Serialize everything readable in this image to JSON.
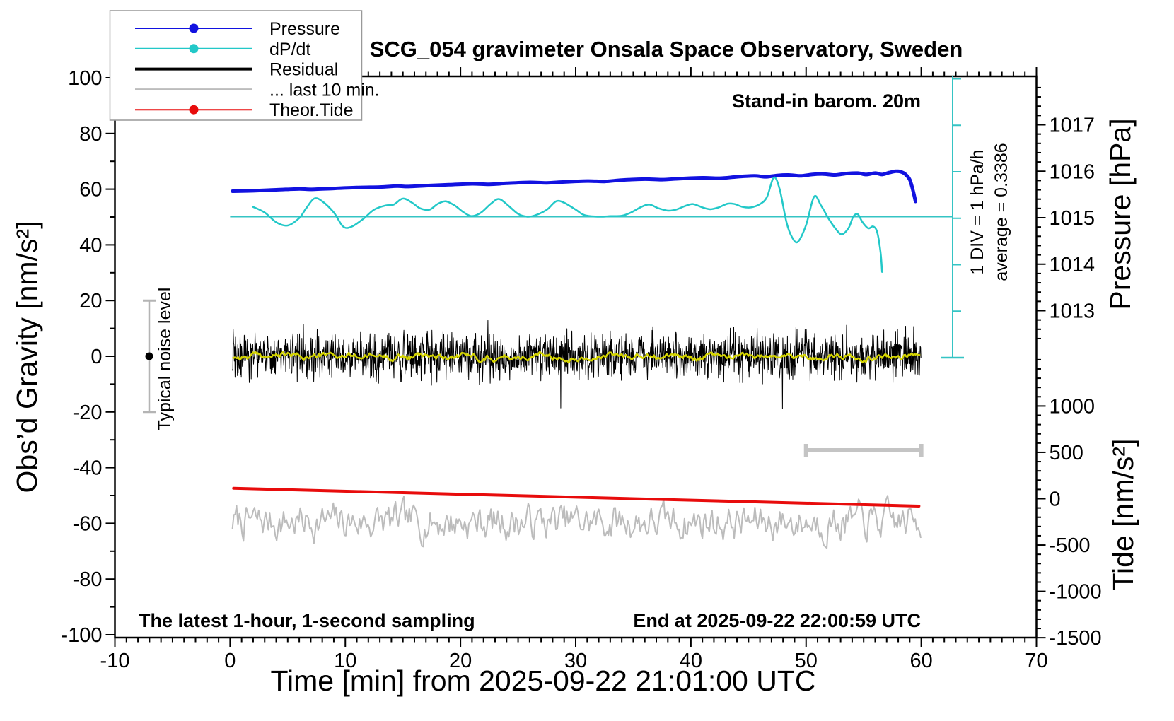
{
  "title": "SCG_054 gravimeter Onsala Space Observatory, Sweden",
  "annotations": {
    "barometer_note": "Stand-in barom. 20m",
    "div_note": "1 DIV = 1 hPa/h",
    "average_note": "average = 0.3386",
    "noise_note": "Typical noise level",
    "footer_left": "The latest 1-hour, 1-second sampling",
    "footer_right": "End at 2025-09-22 22:00:59 UTC"
  },
  "legend": {
    "items": [
      {
        "label": "Pressure",
        "color": "#1212e0",
        "line_width": 2,
        "dot": true
      },
      {
        "label": "dP/dt",
        "color": "#22c8c8",
        "line_width": 2,
        "dot": true
      },
      {
        "label": "Residual",
        "color": "#000000",
        "line_width": 4,
        "dot": false
      },
      {
        "label": "... last 10 min.",
        "color": "#bcbcbc",
        "line_width": 2.5,
        "dot": false
      },
      {
        "label": "Theor.Tide",
        "color": "#e80c0c",
        "line_width": 2,
        "dot": true
      }
    ]
  },
  "chart_data": {
    "type": "line",
    "x_axis": {
      "label": "Time [min] from 2025-09-22 21:01:00 UTC",
      "units": "min",
      "range": [
        -10,
        70
      ],
      "major_ticks": [
        -10,
        0,
        10,
        20,
        30,
        40,
        50,
        60,
        70
      ],
      "minor_step": 1
    },
    "gravity_axis": {
      "label": "Obs’d Gravity [nm/s²]",
      "range": [
        -100,
        100
      ],
      "major_ticks": [
        100,
        80,
        60,
        40,
        20,
        0,
        -20,
        -40,
        -60,
        -80,
        -100
      ],
      "minor_step": 10
    },
    "pressure_axis": {
      "label": "Pressure [hPa]",
      "major_ticks": [
        1017,
        1016,
        1015,
        1014,
        1013
      ],
      "minor_step": 0.2
    },
    "tide_axis": {
      "label": "Tide [nm/s²]",
      "major_ticks": [
        1000,
        500,
        0,
        -500,
        -1000,
        -1500
      ],
      "minor_step": 100
    },
    "dpdt_scale": {
      "note": "1 DIV = 1 hPa/h",
      "average_hPa_per_h": 0.3386,
      "reference_level": 0
    },
    "noise_level_marker": {
      "label": "Typical noise level",
      "center": 0,
      "half_range": 20,
      "units": "nm/s²"
    },
    "last10_marker": {
      "t_start": 50,
      "t_end": 60,
      "units": "min"
    },
    "series": [
      {
        "name": "... last 10 min.",
        "axis": "gravity",
        "color": "#bcbcbc",
        "width": 2,
        "generated_noise": {
          "kind": "ar",
          "seed": 7,
          "ar": 0.6,
          "scale": 10,
          "mean": -59.5,
          "clamp": 11,
          "t_range": [
            0.2,
            60
          ],
          "step": 0.12
        }
      },
      {
        "name": "Theor.Tide",
        "axis": "tide",
        "color": "#e80c0c",
        "width": 4,
        "units": "nm/s²",
        "points": [
          [
            0.3,
            112
          ],
          [
            59.8,
            -80
          ]
        ]
      },
      {
        "name": "Residual",
        "axis": "gravity",
        "color": "#000000",
        "width": 1,
        "units": "nm/s²",
        "generated_noise": {
          "kind": "white",
          "seed": 42,
          "sigma": 4,
          "spike_prob": 0.012,
          "mean": 0,
          "clamp": 26,
          "t_range": [
            0.2,
            60
          ],
          "step": 0.0333
        }
      },
      {
        "name": "Residual smoothed",
        "axis": "gravity",
        "color": "#d4d400",
        "width": 2.5,
        "generated_noise": {
          "kind": "ar",
          "seed": 99,
          "ar": 0.82,
          "scale": 1.6,
          "mean": 0,
          "clamp": 3.5,
          "t_range": [
            0.2,
            60
          ],
          "step": 0.1
        }
      },
      {
        "name": "Pressure",
        "axis": "pressure",
        "color": "#1212e0",
        "width": 5,
        "units": "hPa",
        "points": [
          [
            0.2,
            1015.57
          ],
          [
            2,
            1015.58
          ],
          [
            4,
            1015.6
          ],
          [
            6,
            1015.62
          ],
          [
            7,
            1015.61
          ],
          [
            9,
            1015.63
          ],
          [
            11,
            1015.65
          ],
          [
            13,
            1015.66
          ],
          [
            14.5,
            1015.68
          ],
          [
            15.5,
            1015.67
          ],
          [
            17,
            1015.69
          ],
          [
            19,
            1015.71
          ],
          [
            21,
            1015.73
          ],
          [
            22.5,
            1015.72
          ],
          [
            24,
            1015.74
          ],
          [
            26,
            1015.76
          ],
          [
            27.5,
            1015.75
          ],
          [
            29,
            1015.77
          ],
          [
            31,
            1015.79
          ],
          [
            32.5,
            1015.78
          ],
          [
            34,
            1015.81
          ],
          [
            36,
            1015.83
          ],
          [
            37.5,
            1015.82
          ],
          [
            39,
            1015.84
          ],
          [
            41,
            1015.86
          ],
          [
            42.5,
            1015.85
          ],
          [
            44,
            1015.88
          ],
          [
            45.5,
            1015.9
          ],
          [
            46.5,
            1015.88
          ],
          [
            47.5,
            1015.91
          ],
          [
            48.5,
            1015.92
          ],
          [
            49.5,
            1015.9
          ],
          [
            50.5,
            1015.93
          ],
          [
            51.5,
            1015.94
          ],
          [
            52.5,
            1015.92
          ],
          [
            53.5,
            1015.95
          ],
          [
            54.5,
            1015.96
          ],
          [
            55.2,
            1015.93
          ],
          [
            56,
            1015.96
          ],
          [
            56.6,
            1015.93
          ],
          [
            57.2,
            1015.97
          ],
          [
            57.8,
            1016.0
          ],
          [
            58.2,
            1015.99
          ],
          [
            58.6,
            1015.94
          ],
          [
            59,
            1015.82
          ],
          [
            59.3,
            1015.57
          ],
          [
            59.5,
            1015.35
          ]
        ]
      },
      {
        "name": "dP/dt",
        "axis": "dpdt",
        "color": "#22c8c8",
        "width": 2.5,
        "units": "hPa/h",
        "points": [
          [
            2,
            0.21
          ],
          [
            3,
            0.09
          ],
          [
            4,
            -0.12
          ],
          [
            5,
            -0.19
          ],
          [
            6,
            -0.03
          ],
          [
            6.6,
            0.18
          ],
          [
            7.3,
            0.39
          ],
          [
            8,
            0.33
          ],
          [
            9,
            0.09
          ],
          [
            9.8,
            -0.21
          ],
          [
            10.5,
            -0.22
          ],
          [
            11.5,
            -0.06
          ],
          [
            12.5,
            0.15
          ],
          [
            13.5,
            0.24
          ],
          [
            14.2,
            0.26
          ],
          [
            15,
            0.39
          ],
          [
            15.8,
            0.3
          ],
          [
            16.5,
            0.18
          ],
          [
            17.3,
            0.15
          ],
          [
            18,
            0.27
          ],
          [
            18.7,
            0.33
          ],
          [
            19.5,
            0.24
          ],
          [
            20.3,
            0.09
          ],
          [
            21,
            0.01
          ],
          [
            21.8,
            0.09
          ],
          [
            22.6,
            0.27
          ],
          [
            23.3,
            0.38
          ],
          [
            24,
            0.27
          ],
          [
            25,
            0.06
          ],
          [
            25.8,
            0.0
          ],
          [
            26.5,
            0.03
          ],
          [
            27.5,
            0.15
          ],
          [
            28.3,
            0.33
          ],
          [
            29,
            0.3
          ],
          [
            30,
            0.15
          ],
          [
            30.8,
            0.03
          ],
          [
            32,
            0.0
          ],
          [
            33,
            0.01
          ],
          [
            34,
            0.02
          ],
          [
            34.8,
            0.09
          ],
          [
            35.7,
            0.21
          ],
          [
            36.4,
            0.26
          ],
          [
            37.2,
            0.18
          ],
          [
            38,
            0.13
          ],
          [
            38.7,
            0.15
          ],
          [
            39.5,
            0.23
          ],
          [
            40.2,
            0.27
          ],
          [
            41,
            0.2
          ],
          [
            41.7,
            0.16
          ],
          [
            42.4,
            0.2
          ],
          [
            43.2,
            0.28
          ],
          [
            43.8,
            0.27
          ],
          [
            44.5,
            0.21
          ],
          [
            45.2,
            0.2
          ],
          [
            46,
            0.27
          ],
          [
            46.6,
            0.42
          ],
          [
            47.2,
            0.84
          ],
          [
            47.7,
            0.6
          ],
          [
            48.3,
            -0.12
          ],
          [
            48.8,
            -0.45
          ],
          [
            49.3,
            -0.54
          ],
          [
            50,
            -0.18
          ],
          [
            50.7,
            0.43
          ],
          [
            51.3,
            0.24
          ],
          [
            52,
            -0.06
          ],
          [
            52.6,
            -0.27
          ],
          [
            53.1,
            -0.38
          ],
          [
            53.7,
            -0.24
          ],
          [
            54.1,
            0.0
          ],
          [
            54.5,
            0.05
          ],
          [
            54.9,
            -0.12
          ],
          [
            55.4,
            -0.25
          ],
          [
            55.8,
            -0.21
          ],
          [
            56.1,
            -0.28
          ],
          [
            56.3,
            -0.48
          ],
          [
            56.5,
            -0.84
          ],
          [
            56.6,
            -1.19
          ]
        ]
      }
    ]
  }
}
